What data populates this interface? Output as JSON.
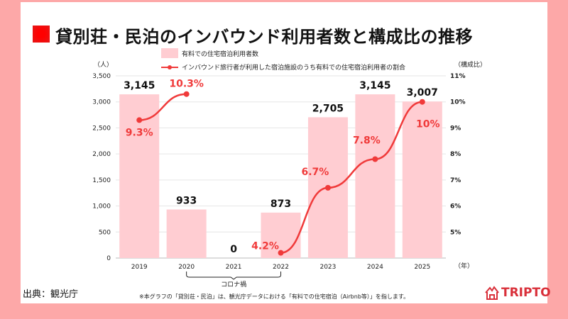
{
  "title": "貸別荘・民泊のインバウンド利用者数と構成比の推移",
  "source": "出典：観光庁",
  "footnote": "※本グラフの「貸別荘・民泊」は、観光庁データにおける「有料での住宅宿泊（Airbnb等）」を指します。",
  "logo": "TRIPTO",
  "colors": {
    "bar": "#ffcdd2",
    "line": "#f03a3a",
    "background": "#fda8a8"
  },
  "chart_data": {
    "type": "bar+line",
    "categories": [
      "2019",
      "2020",
      "2021",
      "2022",
      "2023",
      "2024",
      "2025"
    ],
    "xlabel": "（年）",
    "ylabel_left": "（人）",
    "ylabel_right": "（構成比）",
    "ylim_left": [
      0,
      3500
    ],
    "yticks_left": [
      "0",
      "500",
      "1,000",
      "1,500",
      "2,000",
      "2,500",
      "3,000",
      "3,500"
    ],
    "ylim_right": [
      4,
      11
    ],
    "yticks_right": [
      "5%",
      "6%",
      "7%",
      "8%",
      "9%",
      "10%",
      "11%"
    ],
    "grid": true,
    "legend_position": "top",
    "series": [
      {
        "name": "有料での住宅宿泊利用者数",
        "type": "bar",
        "values": [
          3145,
          933,
          0,
          873,
          2705,
          3145,
          3007
        ],
        "labels": [
          "3,145",
          "933",
          "0",
          "873",
          "2,705",
          "3,145",
          "3,007"
        ]
      },
      {
        "name": "インバウンド旅行者が利用した宿泊施設のうち有料での住宅宿泊利用者の割合",
        "type": "line",
        "values": [
          9.3,
          10.3,
          null,
          4.2,
          6.7,
          7.8,
          10
        ],
        "labels": [
          "9.3%",
          "10.3%",
          "",
          "4.2%",
          "6.7%",
          "7.8%",
          "10%"
        ]
      }
    ],
    "annotation": "コロナ禍"
  }
}
